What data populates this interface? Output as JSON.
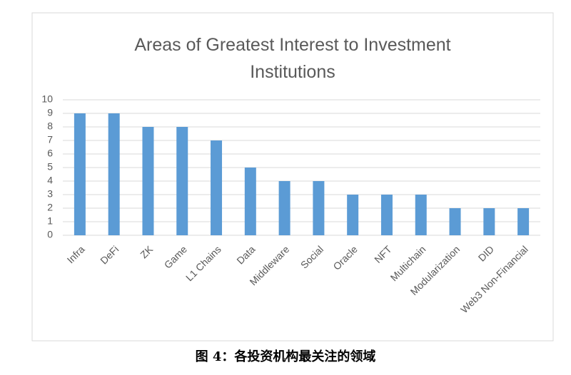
{
  "chart_data": {
    "type": "bar",
    "title": "Areas of Greatest Interest to Investment Institutions",
    "categories": [
      "Infra",
      "DeFi",
      "ZK",
      "Game",
      "L1 Chains",
      "Data",
      "Middleware",
      "Social",
      "Oracle",
      "NFT",
      "Multichain",
      "Modularization",
      "DID",
      "Web3 Non-Financial"
    ],
    "values": [
      9,
      9,
      8,
      8,
      7,
      5,
      4,
      4,
      3,
      3,
      3,
      2,
      2,
      2
    ],
    "color": "#5b9bd5",
    "ylim": [
      0,
      10
    ],
    "yticks": [
      0,
      1,
      2,
      3,
      4,
      5,
      6,
      7,
      8,
      9,
      10
    ],
    "grid": true
  },
  "caption": "图 4：各投资机构最关注的领域"
}
